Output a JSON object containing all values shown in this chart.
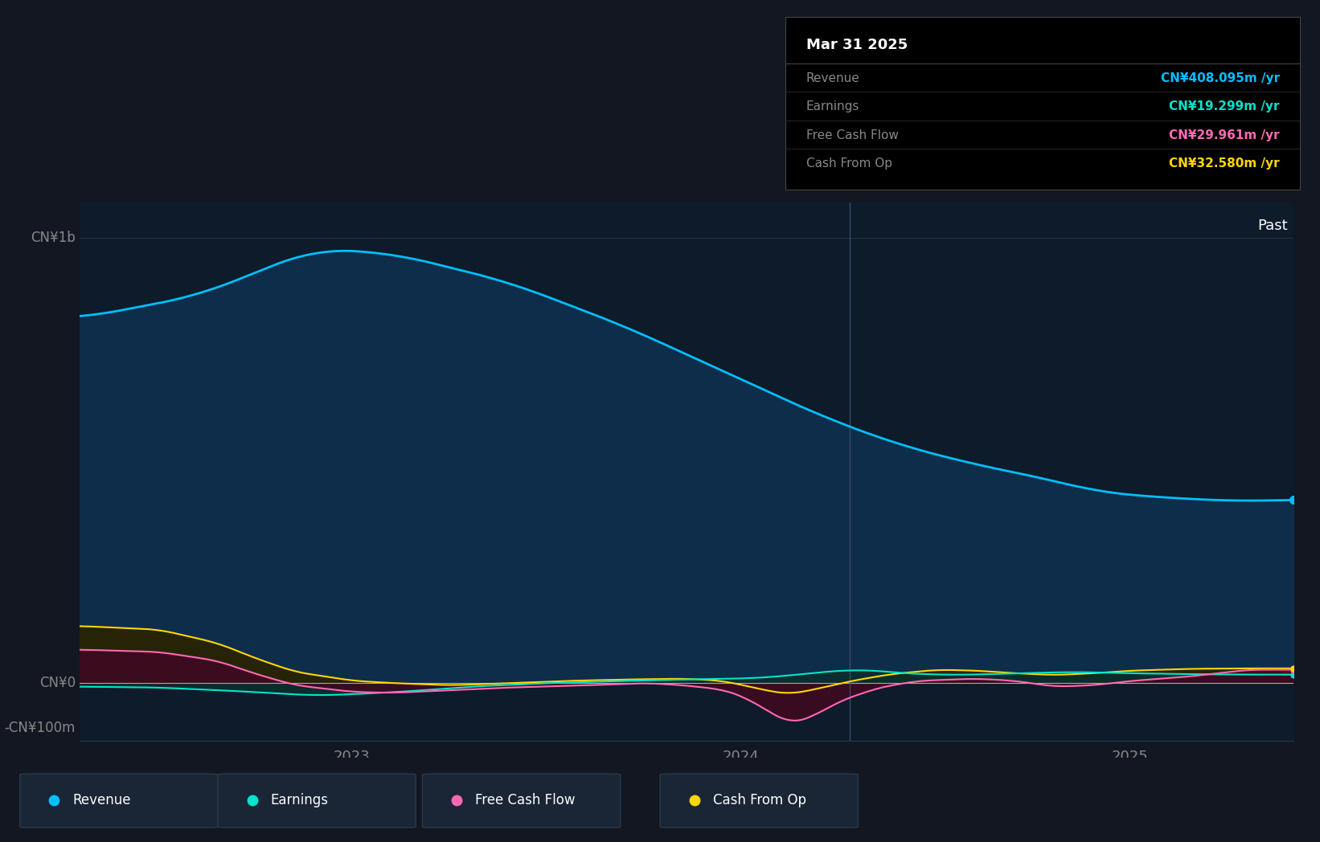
{
  "background_color": "#131722",
  "plot_bg_color": "#0d1b2a",
  "tooltip_title": "Mar 31 2025",
  "tooltip_items": [
    {
      "label": "Revenue",
      "value": "CN¥408.095m /yr",
      "color": "#00bfff"
    },
    {
      "label": "Earnings",
      "value": "CN¥19.299m /yr",
      "color": "#00e5cc"
    },
    {
      "label": "Free Cash Flow",
      "value": "CN¥29.961m /yr",
      "color": "#ff69b4"
    },
    {
      "label": "Cash From Op",
      "value": "CN¥32.580m /yr",
      "color": "#ffd700"
    }
  ],
  "ylabel_top": "CN¥1b",
  "ytick_zero": "CN¥0",
  "ytick_neg": "-CN¥100m",
  "past_label": "Past",
  "legend": [
    {
      "label": "Revenue",
      "color": "#00bfff"
    },
    {
      "label": "Earnings",
      "color": "#00e5cc"
    },
    {
      "label": "Free Cash Flow",
      "color": "#ff69b4"
    },
    {
      "label": "Cash From Op",
      "color": "#ffd700"
    }
  ],
  "x_ticks": [
    2023.0,
    2024.0,
    2025.0
  ],
  "x_tick_labels": [
    "2023",
    "2024",
    "2025"
  ],
  "revenue_line_color": "#00bfff",
  "revenue_fill_color": "#0e2d4a",
  "earnings_line_color": "#00e5cc",
  "earnings_fill_color": "#0a2e2e",
  "fcf_line_color": "#ff69b4",
  "fcf_fill_color": "#3d0a20",
  "cashop_line_color": "#ffd700",
  "cashop_fill_color": "#2a2200",
  "divider_x": 2024.28,
  "ymin": -130,
  "ymax": 1080,
  "xmin": 2022.3,
  "xmax": 2025.42
}
